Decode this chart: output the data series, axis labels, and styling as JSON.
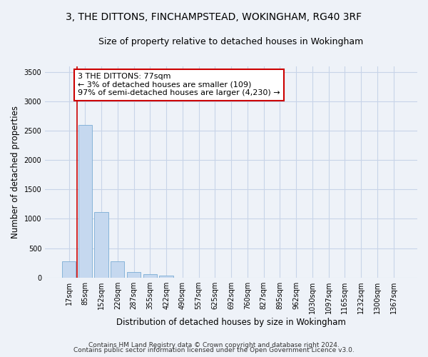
{
  "title1": "3, THE DITTONS, FINCHAMPSTEAD, WOKINGHAM, RG40 3RF",
  "title2": "Size of property relative to detached houses in Wokingham",
  "xlabel": "Distribution of detached houses by size in Wokingham",
  "ylabel": "Number of detached properties",
  "categories": [
    "17sqm",
    "85sqm",
    "152sqm",
    "220sqm",
    "287sqm",
    "355sqm",
    "422sqm",
    "490sqm",
    "557sqm",
    "625sqm",
    "692sqm",
    "760sqm",
    "827sqm",
    "895sqm",
    "962sqm",
    "1030sqm",
    "1097sqm",
    "1165sqm",
    "1232sqm",
    "1300sqm",
    "1367sqm"
  ],
  "values": [
    270,
    2600,
    1120,
    280,
    95,
    50,
    30,
    0,
    0,
    0,
    0,
    0,
    0,
    0,
    0,
    0,
    0,
    0,
    0,
    0,
    0
  ],
  "bar_color": "#c5d8ef",
  "bar_edge_color": "#7aadd4",
  "grid_color": "#c8d4e8",
  "bg_color": "#eef2f8",
  "annotation_text_line1": "3 THE DITTONS: 77sqm",
  "annotation_text_line2": "← 3% of detached houses are smaller (109)",
  "annotation_text_line3": "97% of semi-detached houses are larger (4,230) →",
  "annotation_box_color": "#ffffff",
  "annotation_box_edge": "#cc0000",
  "vline_color": "#cc0000",
  "vline_x": 0.5,
  "footer1": "Contains HM Land Registry data © Crown copyright and database right 2024.",
  "footer2": "Contains public sector information licensed under the Open Government Licence v3.0.",
  "ylim": [
    0,
    3600
  ],
  "yticks": [
    0,
    500,
    1000,
    1500,
    2000,
    2500,
    3000,
    3500
  ],
  "title_fontsize": 10,
  "subtitle_fontsize": 9,
  "tick_fontsize": 7,
  "ylabel_fontsize": 8.5,
  "xlabel_fontsize": 8.5,
  "footer_fontsize": 6.5,
  "annotation_fontsize": 8
}
